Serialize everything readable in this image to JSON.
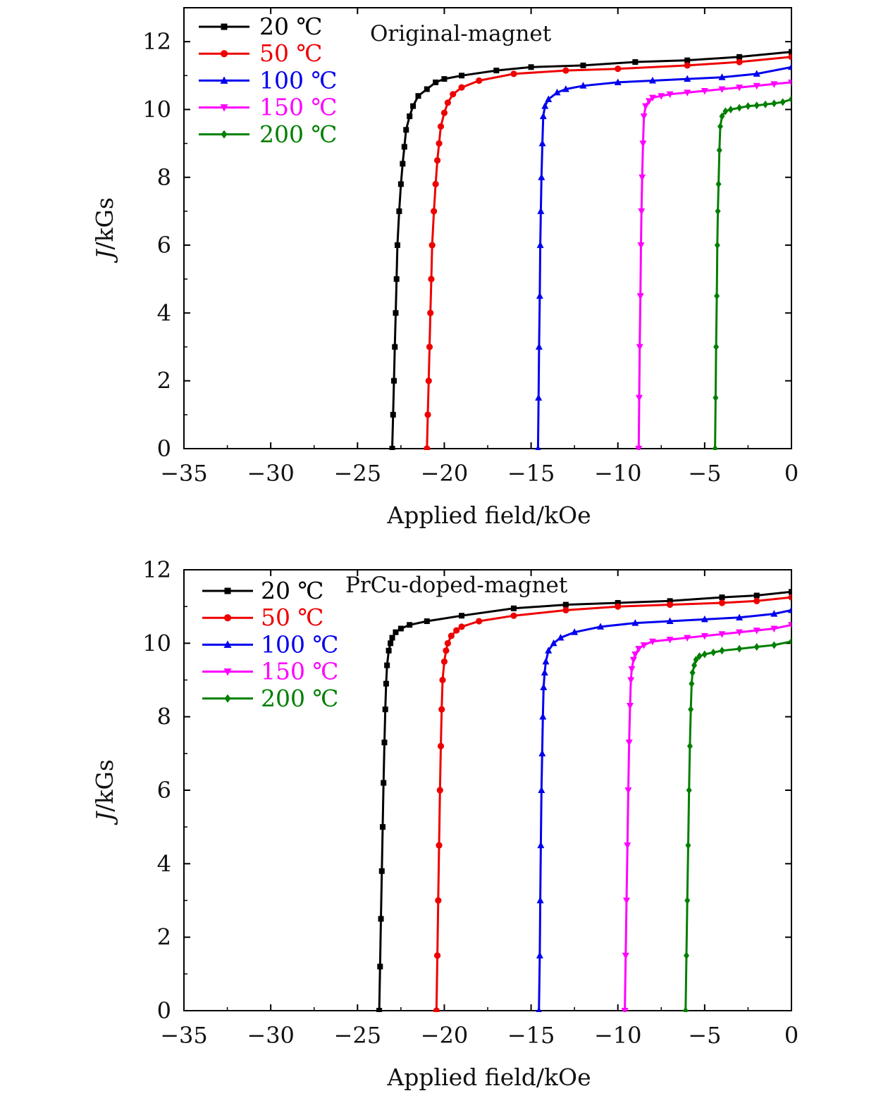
{
  "chart_data": [
    {
      "type": "line",
      "title": "Original-magnet",
      "xlabel": "Applied field/kOe",
      "ylabel_italic": "J",
      "ylabel_rest": "/kGs",
      "xlim": [
        -35,
        0
      ],
      "ylim": [
        0,
        13
      ],
      "xticks": [
        -35,
        -30,
        -25,
        -20,
        -15,
        -10,
        -5,
        0
      ],
      "yticks": [
        0,
        2,
        4,
        6,
        8,
        10,
        12
      ],
      "xtick_labels": [
        "−35",
        "−30",
        "−25",
        "−20",
        "−15",
        "−10",
        "−5",
        "0"
      ],
      "ytick_labels": [
        "0",
        "2",
        "4",
        "6",
        "8",
        "10",
        "12"
      ],
      "grid": false,
      "legend_position": "top-left",
      "series": [
        {
          "name": "20 ℃",
          "color": "#000000",
          "marker": "square",
          "x": [
            -23.0,
            -22.95,
            -22.9,
            -22.85,
            -22.8,
            -22.75,
            -22.7,
            -22.6,
            -22.5,
            -22.4,
            -22.3,
            -22.2,
            -22.0,
            -21.8,
            -21.5,
            -21.0,
            -20.5,
            -20.0,
            -19.0,
            -17.0,
            -15.0,
            -12.0,
            -9.0,
            -6.0,
            -3.0,
            0.0
          ],
          "y": [
            0,
            1.0,
            2.0,
            3.0,
            4.0,
            5.0,
            6.0,
            7.0,
            7.8,
            8.4,
            8.9,
            9.4,
            9.8,
            10.1,
            10.4,
            10.6,
            10.8,
            10.9,
            11.0,
            11.15,
            11.25,
            11.3,
            11.4,
            11.45,
            11.55,
            11.7
          ]
        },
        {
          "name": "50 ℃",
          "color": "#ee0000",
          "marker": "circle",
          "x": [
            -21.0,
            -20.95,
            -20.9,
            -20.85,
            -20.8,
            -20.75,
            -20.7,
            -20.6,
            -20.5,
            -20.4,
            -20.3,
            -20.2,
            -20.0,
            -19.8,
            -19.5,
            -19.0,
            -18.0,
            -16.0,
            -13.0,
            -10.0,
            -6.0,
            -3.0,
            0.0
          ],
          "y": [
            0,
            1.0,
            2.0,
            3.0,
            4.0,
            5.0,
            6.0,
            7.0,
            7.8,
            8.5,
            9.0,
            9.5,
            9.9,
            10.2,
            10.45,
            10.65,
            10.85,
            11.05,
            11.15,
            11.2,
            11.3,
            11.4,
            11.55
          ]
        },
        {
          "name": "100 ℃",
          "color": "#0000ee",
          "marker": "triangle-up",
          "x": [
            -14.6,
            -14.57,
            -14.54,
            -14.5,
            -14.47,
            -14.44,
            -14.4,
            -14.35,
            -14.3,
            -14.2,
            -14.0,
            -13.5,
            -13.0,
            -12.0,
            -10.0,
            -8.0,
            -6.0,
            -4.0,
            -2.0,
            0.0
          ],
          "y": [
            0,
            1.5,
            3.0,
            4.5,
            6.0,
            7.0,
            8.0,
            9.0,
            9.8,
            10.1,
            10.3,
            10.5,
            10.6,
            10.7,
            10.8,
            10.85,
            10.9,
            10.95,
            11.05,
            11.25
          ]
        },
        {
          "name": "150 ℃",
          "color": "#ff00ff",
          "marker": "triangle-down",
          "x": [
            -8.8,
            -8.77,
            -8.74,
            -8.7,
            -8.67,
            -8.64,
            -8.6,
            -8.55,
            -8.5,
            -8.4,
            -8.2,
            -8.0,
            -7.5,
            -7.0,
            -6.0,
            -5.0,
            -4.0,
            -3.0,
            -2.0,
            -1.0,
            0.0
          ],
          "y": [
            0,
            1.5,
            3.0,
            4.5,
            6.0,
            7.0,
            8.0,
            9.0,
            9.8,
            10.1,
            10.25,
            10.35,
            10.4,
            10.45,
            10.5,
            10.55,
            10.6,
            10.65,
            10.7,
            10.75,
            10.8
          ]
        },
        {
          "name": "200 ℃",
          "color": "#007f00",
          "marker": "diamond",
          "x": [
            -4.4,
            -4.37,
            -4.34,
            -4.3,
            -4.27,
            -4.24,
            -4.2,
            -4.15,
            -4.1,
            -4.0,
            -3.8,
            -3.5,
            -3.0,
            -2.5,
            -2.0,
            -1.5,
            -1.0,
            -0.5,
            0.0
          ],
          "y": [
            0,
            1.5,
            3.0,
            4.5,
            6.0,
            7.0,
            7.8,
            8.8,
            9.5,
            9.8,
            9.95,
            10.0,
            10.05,
            10.1,
            10.12,
            10.15,
            10.18,
            10.22,
            10.3
          ]
        }
      ]
    },
    {
      "type": "line",
      "title": "PrCu-doped-magnet",
      "xlabel": "Applied field/kOe",
      "ylabel_italic": "J",
      "ylabel_rest": "/kGs",
      "xlim": [
        -35,
        0
      ],
      "ylim": [
        0,
        12
      ],
      "xticks": [
        -35,
        -30,
        -25,
        -20,
        -15,
        -10,
        -5,
        0
      ],
      "yticks": [
        0,
        2,
        4,
        6,
        8,
        10,
        12
      ],
      "xtick_labels": [
        "−35",
        "−30",
        "−25",
        "−20",
        "−15",
        "−10",
        "−5",
        "0"
      ],
      "ytick_labels": [
        "0",
        "2",
        "4",
        "6",
        "8",
        "10",
        "12"
      ],
      "grid": false,
      "legend_position": "top-left",
      "series": [
        {
          "name": "20 ℃",
          "color": "#000000",
          "marker": "square",
          "x": [
            -23.75,
            -23.7,
            -23.65,
            -23.6,
            -23.55,
            -23.5,
            -23.45,
            -23.4,
            -23.35,
            -23.3,
            -23.2,
            -23.1,
            -23.0,
            -22.8,
            -22.5,
            -22.0,
            -21.0,
            -19.0,
            -16.0,
            -13.0,
            -10.0,
            -7.0,
            -4.0,
            -2.0,
            0.0
          ],
          "y": [
            0,
            1.2,
            2.5,
            3.8,
            5.0,
            6.2,
            7.3,
            8.2,
            8.9,
            9.4,
            9.8,
            10.0,
            10.15,
            10.3,
            10.4,
            10.5,
            10.6,
            10.75,
            10.95,
            11.05,
            11.1,
            11.15,
            11.25,
            11.3,
            11.4
          ]
        },
        {
          "name": "50 ℃",
          "color": "#ee0000",
          "marker": "circle",
          "x": [
            -20.45,
            -20.4,
            -20.35,
            -20.3,
            -20.25,
            -20.2,
            -20.15,
            -20.1,
            -20.0,
            -19.9,
            -19.8,
            -19.6,
            -19.3,
            -19.0,
            -18.0,
            -16.0,
            -13.0,
            -10.0,
            -7.0,
            -4.0,
            -2.0,
            0.0
          ],
          "y": [
            0,
            1.5,
            3.0,
            4.5,
            6.0,
            7.2,
            8.2,
            9.0,
            9.5,
            9.8,
            10.0,
            10.2,
            10.35,
            10.45,
            10.6,
            10.75,
            10.9,
            11.0,
            11.05,
            11.1,
            11.15,
            11.25
          ]
        },
        {
          "name": "100 ℃",
          "color": "#0000ee",
          "marker": "triangle-up",
          "x": [
            -14.55,
            -14.5,
            -14.47,
            -14.44,
            -14.4,
            -14.36,
            -14.32,
            -14.28,
            -14.22,
            -14.15,
            -14.0,
            -13.7,
            -13.3,
            -12.5,
            -11.0,
            -9.0,
            -7.0,
            -5.0,
            -3.0,
            -1.0,
            0.0
          ],
          "y": [
            0,
            1.5,
            3.0,
            4.5,
            6.0,
            7.0,
            8.0,
            8.8,
            9.2,
            9.5,
            9.8,
            10.0,
            10.15,
            10.3,
            10.45,
            10.55,
            10.6,
            10.65,
            10.7,
            10.8,
            10.9
          ]
        },
        {
          "name": "150 ℃",
          "color": "#ff00ff",
          "marker": "triangle-down",
          "x": [
            -9.6,
            -9.55,
            -9.5,
            -9.45,
            -9.4,
            -9.35,
            -9.3,
            -9.25,
            -9.2,
            -9.1,
            -9.0,
            -8.8,
            -8.5,
            -8.0,
            -7.0,
            -6.0,
            -5.0,
            -4.0,
            -3.0,
            -2.0,
            -1.0,
            0.0
          ],
          "y": [
            0,
            1.5,
            3.0,
            4.5,
            6.0,
            7.3,
            8.3,
            9.0,
            9.3,
            9.55,
            9.7,
            9.85,
            9.95,
            10.05,
            10.1,
            10.15,
            10.2,
            10.25,
            10.3,
            10.35,
            10.4,
            10.5
          ]
        },
        {
          "name": "200 ℃",
          "color": "#007f00",
          "marker": "diamond",
          "x": [
            -6.1,
            -6.05,
            -6.0,
            -5.95,
            -5.9,
            -5.85,
            -5.8,
            -5.75,
            -5.7,
            -5.6,
            -5.5,
            -5.3,
            -5.0,
            -4.5,
            -4.0,
            -3.0,
            -2.0,
            -1.0,
            0.0
          ],
          "y": [
            0,
            1.5,
            3.0,
            4.5,
            6.0,
            7.2,
            8.2,
            8.9,
            9.2,
            9.4,
            9.55,
            9.65,
            9.7,
            9.75,
            9.8,
            9.85,
            9.9,
            9.95,
            10.05
          ]
        }
      ]
    }
  ]
}
